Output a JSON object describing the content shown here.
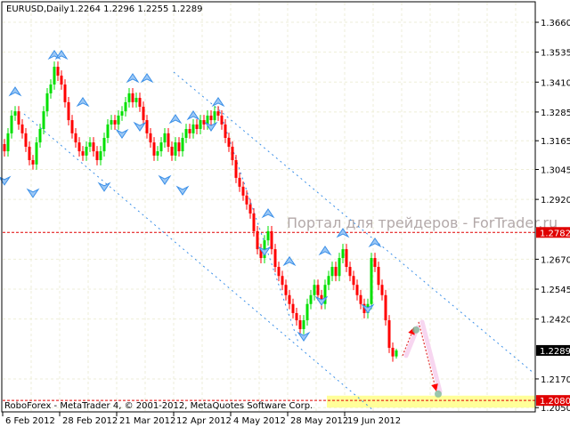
{
  "header": {
    "symbol_timeframe": "EURUSD,Daily",
    "ohlc": "1.2264 1.2296 1.2255 1.2289"
  },
  "watermark": "Портал для трейдеров - ForTrader.ru",
  "footer": "RoboForex - MetaTrader 4, © 2001-2012, MetaQuotes Software Corp.",
  "colors": {
    "bull": "#00e000",
    "bear": "#ff0000",
    "grid": "#eeeed8",
    "fractal": "#3a8fe8",
    "trendline": "#3a8fe8",
    "level": "#e00000",
    "zone": "#ffff99",
    "forecast": "#e03030",
    "current_price_bg": "#000000"
  },
  "chart_data": {
    "type": "candlestick",
    "symbol": "EURUSD",
    "timeframe": "Daily",
    "last_bar": {
      "open": 1.2264,
      "high": 1.2296,
      "low": 1.2255,
      "close": 1.2289
    },
    "closes": [
      1.3121,
      1.3196,
      1.327,
      1.3288,
      1.3233,
      1.3196,
      1.314,
      1.3084,
      1.3066,
      1.3158,
      1.3214,
      1.3288,
      1.3363,
      1.34,
      1.3474,
      1.3437,
      1.34,
      1.3326,
      1.3251,
      1.3196,
      1.3158,
      1.3121,
      1.3103,
      1.314,
      1.3158,
      1.3121,
      1.3084,
      1.3121,
      1.3177,
      1.3233,
      1.3251,
      1.3233,
      1.327,
      1.3288,
      1.3326,
      1.3363,
      1.3326,
      1.3344,
      1.3307,
      1.3251,
      1.3196,
      1.3158,
      1.3103,
      1.3121,
      1.3158,
      1.3196,
      1.314,
      1.3103,
      1.3158,
      1.3121,
      1.3177,
      1.3214,
      1.3196,
      1.3233,
      1.3214,
      1.3251,
      1.3233,
      1.327,
      1.3251,
      1.3288,
      1.327,
      1.3233,
      1.3177,
      1.314,
      1.3084,
      1.301,
      1.2973,
      1.2936,
      1.2899,
      1.2861,
      1.2787,
      1.2712,
      1.2675,
      1.2749,
      1.2787,
      1.2712,
      1.2638,
      1.26,
      1.2563,
      1.252,
      1.2483,
      1.2445,
      1.2415,
      1.2378,
      1.2415,
      1.2483,
      1.252,
      1.2563,
      1.252,
      1.2483,
      1.2563,
      1.26,
      1.2638,
      1.26,
      1.2675,
      1.2712,
      1.2638,
      1.26,
      1.2563,
      1.252,
      1.2483,
      1.2445,
      1.2483,
      1.2675,
      1.2638,
      1.2563,
      1.252,
      1.2415,
      1.23,
      1.2264,
      1.2289
    ],
    "y_ticks": [
      "1.3660",
      "1.3535",
      "1.3410",
      "1.3285",
      "1.3165",
      "1.3045",
      "1.2920",
      "1.2670",
      "1.2545",
      "1.2420",
      "1.2170",
      "1.2050"
    ],
    "x_ticks": [
      "6 Feb 2012",
      "28 Feb 2012",
      "21 Mar 2012",
      "12 Apr 2012",
      "4 May 2012",
      "28 May 2012",
      "19 Jun 2012"
    ],
    "ylim": [
      1.2036,
      1.3753
    ],
    "current_price": "1.2289",
    "levels": [
      {
        "price": "1.2782"
      },
      {
        "price": "1.2080"
      }
    ],
    "target_zone": [
      1.205,
      1.21
    ],
    "fractals_up": [
      [
        3,
        1.337
      ],
      [
        14,
        1.3523
      ],
      [
        16,
        1.3523
      ],
      [
        22,
        1.3326
      ],
      [
        36,
        1.3426
      ],
      [
        40,
        1.3426
      ],
      [
        48,
        1.3255
      ],
      [
        53,
        1.327
      ],
      [
        60,
        1.3326
      ],
      [
        74,
        1.2861
      ],
      [
        80,
        1.2661
      ],
      [
        90,
        1.2705
      ],
      [
        95,
        1.2779
      ],
      [
        104,
        1.2739
      ]
    ],
    "fractals_down": [
      [
        0,
        1.2999
      ],
      [
        8,
        1.2947
      ],
      [
        28,
        1.2973
      ],
      [
        33,
        1.3195
      ],
      [
        38,
        1.3225
      ],
      [
        45,
        1.3002
      ],
      [
        50,
        1.2958
      ],
      [
        58,
        1.3225
      ],
      [
        73,
        1.2705
      ],
      [
        84,
        1.2348
      ],
      [
        89,
        1.2497
      ],
      [
        102,
        1.2464
      ]
    ],
    "trendlines": [
      [
        [
          5.5,
          1.3277
        ],
        [
          103.75,
          1.2036
        ]
      ],
      [
        [
          47.5,
          1.3452
        ],
        [
          148.75,
          1.2192
        ]
      ],
      [
        [
          60,
          1.3307
        ],
        [
          82.5,
          1.2322
        ]
      ]
    ],
    "forecast": [
      [
        [
          111.75,
          1.2267
        ],
        [
          115,
          1.2386
        ]
      ],
      [
        [
          116.25,
          1.2408
        ],
        [
          121.25,
          1.2118
        ]
      ]
    ],
    "grid": true
  }
}
